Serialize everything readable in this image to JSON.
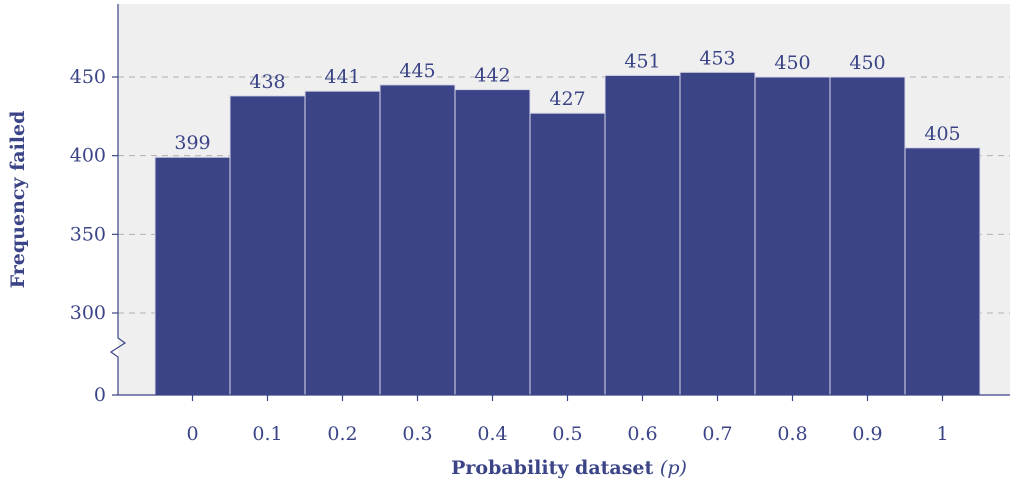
{
  "colors": {
    "bar_fill": "#3b4487",
    "bar_edge": "#d8d8e8",
    "plot_background": "#efefef",
    "axis": "#3b4487",
    "grid": "#b0b0b0",
    "text": "#3b4487"
  },
  "chart_data": {
    "type": "bar",
    "categories": [
      "0",
      "0.1",
      "0.2",
      "0.3",
      "0.4",
      "0.5",
      "0.6",
      "0.7",
      "0.8",
      "0.9",
      "1"
    ],
    "values": [
      399,
      438,
      441,
      445,
      442,
      427,
      451,
      453,
      450,
      450,
      405
    ],
    "xlabel_text": "Probability dataset",
    "xlabel_var": "(p)",
    "ylabel": "Frequency failed",
    "ylim": [
      275,
      485
    ],
    "yticks": [
      300,
      350,
      400,
      450
    ],
    "ybreak_label": "0",
    "axis_break": true,
    "grid": "horizontal-dashed",
    "data_labels": true
  }
}
